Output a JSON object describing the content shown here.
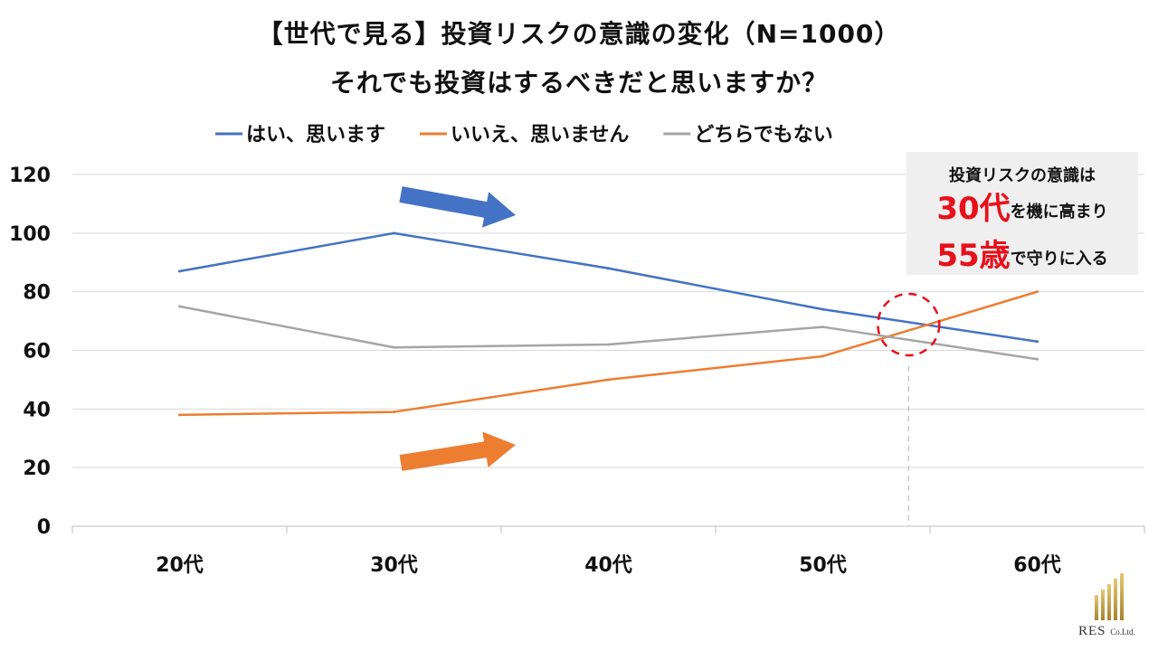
{
  "chart_data": {
    "type": "line",
    "title": "【世代で見る】投資リスクの意識の変化（N=1000）",
    "subtitle": "それでも投資はするべきだと思いますか？",
    "categories": [
      "20代",
      "30代",
      "40代",
      "50代",
      "60代"
    ],
    "series": [
      {
        "name": "はい、思います",
        "color": "#4472c4",
        "values": [
          87,
          100,
          88,
          74,
          63
        ]
      },
      {
        "name": "いいえ、思いません",
        "color": "#ed7d31",
        "values": [
          38,
          39,
          50,
          58,
          80
        ]
      },
      {
        "name": "どちらでもない",
        "color": "#a5a5a5",
        "values": [
          75,
          61,
          62,
          68,
          57
        ]
      }
    ],
    "ylim": [
      0,
      120
    ],
    "yticks": [
      0,
      20,
      40,
      60,
      80,
      100,
      120
    ],
    "grid": true,
    "legend": "top-center",
    "annotations": {
      "callout_line1": "投資リスクの意識は",
      "callout_big1": "30代",
      "callout_rest1": "を機に高まり",
      "callout_big2": "55歳",
      "callout_rest2": "で守りに入る",
      "crossover_x": 54
    }
  },
  "logo": {
    "name": "RES",
    "suffix": "Co.Ltd."
  }
}
